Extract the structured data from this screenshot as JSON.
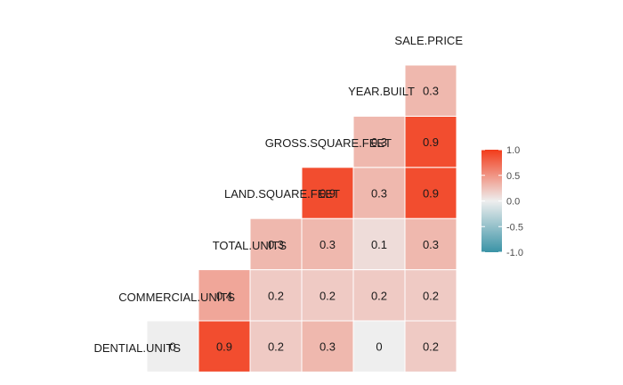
{
  "chart_data": {
    "type": "heatmap",
    "variables": [
      "DENTIAL.UNITS",
      "COMMERCIAL.UNITS",
      "TOTAL.UNITS",
      "LAND.SQUARE.FEET",
      "GROSS.SQUARE.FEET",
      "YEAR.BUILT",
      "SALE.PRICE"
    ],
    "diagonal_labels": [
      "DENTIAL.UNITS",
      "COMMERCIAL.UNITS",
      "TOTAL.UNITS",
      "LAND.SQUARE.FEET",
      "GROSS.SQUARE.FEET",
      "YEAR.BUILT",
      "SALE.PRICE"
    ],
    "cells": [
      {
        "row": 0,
        "col": 0,
        "value": 0,
        "label": "0"
      },
      {
        "row": 0,
        "col": 1,
        "value": 0.9,
        "label": "0.9"
      },
      {
        "row": 0,
        "col": 2,
        "value": 0.2,
        "label": "0.2"
      },
      {
        "row": 0,
        "col": 3,
        "value": 0.3,
        "label": "0.3"
      },
      {
        "row": 0,
        "col": 4,
        "value": 0,
        "label": "0"
      },
      {
        "row": 0,
        "col": 5,
        "value": 0.2,
        "label": "0.2"
      },
      {
        "row": 1,
        "col": 1,
        "value": 0.4,
        "label": "0.4"
      },
      {
        "row": 1,
        "col": 2,
        "value": 0.2,
        "label": "0.2"
      },
      {
        "row": 1,
        "col": 3,
        "value": 0.2,
        "label": "0.2"
      },
      {
        "row": 1,
        "col": 4,
        "value": 0.2,
        "label": "0.2"
      },
      {
        "row": 1,
        "col": 5,
        "value": 0.2,
        "label": "0.2"
      },
      {
        "row": 2,
        "col": 2,
        "value": 0.3,
        "label": "0.3"
      },
      {
        "row": 2,
        "col": 3,
        "value": 0.3,
        "label": "0.3"
      },
      {
        "row": 2,
        "col": 4,
        "value": 0.1,
        "label": "0.1"
      },
      {
        "row": 2,
        "col": 5,
        "value": 0.3,
        "label": "0.3"
      },
      {
        "row": 3,
        "col": 3,
        "value": 0.9,
        "label": "0.9"
      },
      {
        "row": 3,
        "col": 4,
        "value": 0.3,
        "label": "0.3"
      },
      {
        "row": 3,
        "col": 5,
        "value": 0.9,
        "label": "0.9"
      },
      {
        "row": 4,
        "col": 4,
        "value": 0.3,
        "label": "0.3"
      },
      {
        "row": 4,
        "col": 5,
        "value": 0.9,
        "label": "0.9"
      },
      {
        "row": 5,
        "col": 5,
        "value": 0.3,
        "label": "0.3"
      }
    ],
    "scale": {
      "min": -1,
      "max": 1,
      "low_color": "#3a93a6",
      "mid_color": "#eeeeee",
      "high_color": "#f23b1a",
      "ticks": [
        "1.0",
        "0.5",
        "0.0",
        "-0.5",
        "-1.0"
      ]
    },
    "legend_position": "right"
  }
}
